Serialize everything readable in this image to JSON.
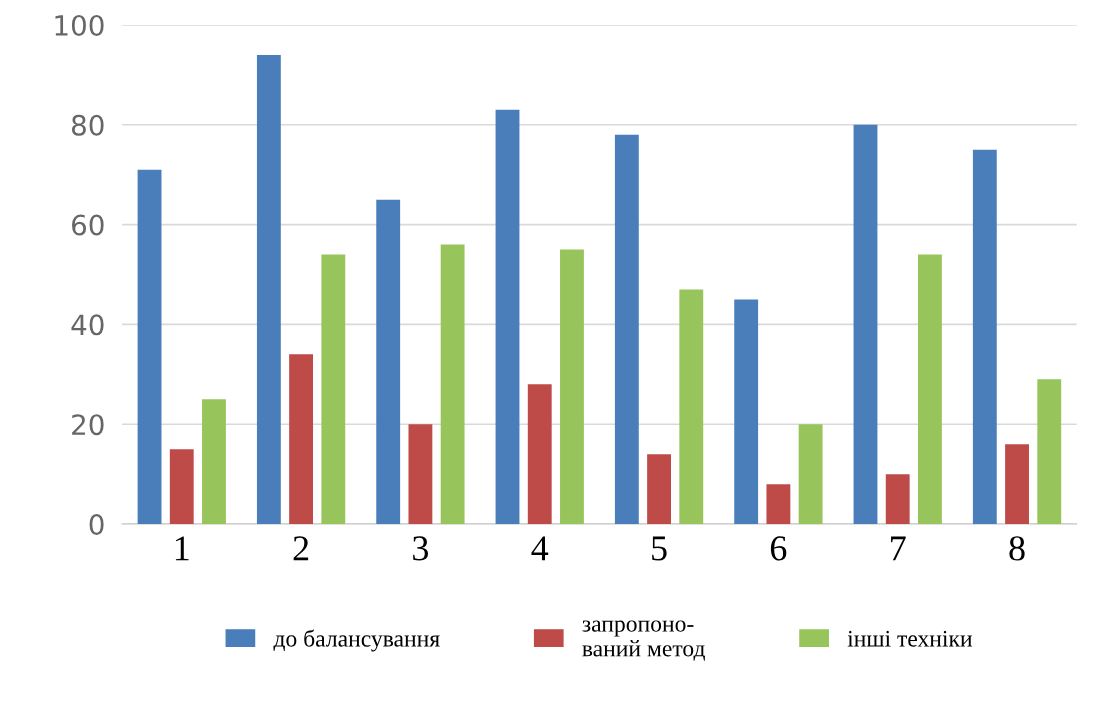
{
  "chart_data": {
    "type": "bar",
    "categories": [
      "1",
      "2",
      "3",
      "4",
      "5",
      "6",
      "7",
      "8"
    ],
    "series": [
      {
        "name": "до балансування",
        "color": "#4a7ebb",
        "values": [
          71,
          94,
          65,
          83,
          78,
          45,
          80,
          75
        ]
      },
      {
        "name": "запропоно-\nваний метод",
        "color": "#be4b48",
        "values": [
          15,
          34,
          20,
          28,
          14,
          8,
          10,
          16
        ]
      },
      {
        "name": "інші техніки",
        "color": "#98c45c",
        "values": [
          25,
          54,
          56,
          55,
          47,
          20,
          54,
          29
        ]
      }
    ],
    "ylim": [
      0,
      100
    ],
    "yticks": [
      0,
      20,
      40,
      60,
      80,
      100
    ],
    "grid": "y",
    "legend": "bottom"
  }
}
